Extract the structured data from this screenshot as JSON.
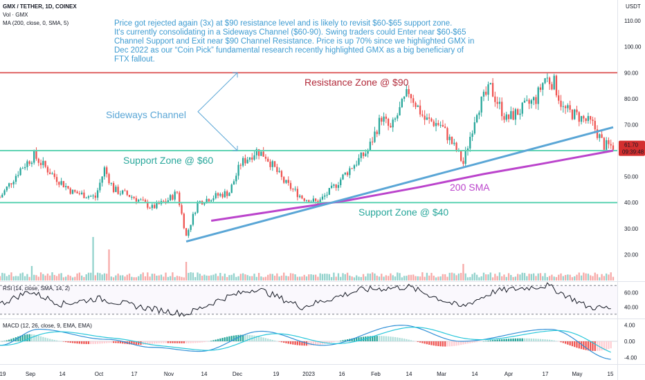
{
  "legend": {
    "pair": "GMX / TETHER, 1D, COINEX",
    "volume": "Vol · GMX",
    "ma": "MA (200, close, 0, SMA, 5)",
    "rsi": "RSI (14, close, SMA, 14, 2)",
    "macd": "MACD (12, 26, close, 9, EMA, EMA)"
  },
  "currency": "USDT",
  "note": [
    "Price got rejected again (3x) at $90 resistance level and is likely to revisit $60-$65 support zone.",
    "It's currently consolidating in a Sideways Channel ($60-90). Swing traders could Enter near $60-$65",
    "Channel Support and Exit near $90 Channel Resistance. Price is up 70% since we highlighted GMX in",
    "Dec 2022 as our “Coin Pick” fundamental research recently highlighted GMX as a big beneficiary of",
    "FTX fallout."
  ],
  "labels": {
    "resistance": "Resistance Zone @ $90",
    "sideways": "Sideways Channel",
    "support60": "Support Zone @ $60",
    "sma": "200 SMA",
    "support40": "Support Zone @ $40"
  },
  "last_price": {
    "value": "61.70",
    "countdown": "09:39:48"
  },
  "x_ticks": [
    "19",
    "Sep",
    "14",
    "Oct",
    "17",
    "Nov",
    "14",
    "Dec",
    "19",
    "2023",
    "16",
    "Feb",
    "14",
    "Mar",
    "14",
    "Apr",
    "17",
    "May",
    "15"
  ],
  "price_ticks": [
    "110.00",
    "100.00",
    "90.00",
    "80.00",
    "70.00",
    "60.00",
    "50.00",
    "40.00",
    "30.00",
    "20.00"
  ],
  "rsi_ticks": [
    "60.00",
    "40.00"
  ],
  "macd_ticks": [
    "4.00",
    "0.00",
    "-4.00"
  ],
  "colors": {
    "up": "#26a69a",
    "down": "#ef5350",
    "resistance": "#e06666",
    "support": "#5fd3b3",
    "trendline": "#5aa6d6",
    "sma": "#bb44cc",
    "note": "#3d9bd1",
    "macd": "#2f8fd6",
    "signal": "#26c6da"
  },
  "chart_data": {
    "type": "candlestick",
    "timeframe": "1D",
    "x_range": [
      "2022-08-19",
      "2023-05-16"
    ],
    "ylim": [
      10,
      118
    ],
    "zones": [
      {
        "name": "Resistance Zone @ $90",
        "price": 90
      },
      {
        "name": "Support Zone @ $60",
        "price": 60
      },
      {
        "name": "Support Zone @ $40",
        "price": 40
      }
    ],
    "trendline": {
      "from": {
        "date": "2022-11-09",
        "price": 25
      },
      "to": {
        "date": "2023-05-16",
        "price": 69
      }
    },
    "sideways_channel_arrow": {
      "top_price": 90,
      "bottom_price": 60
    },
    "sma200": [
      {
        "date": "2022-11-20",
        "price": 33
      },
      {
        "date": "2022-12-20",
        "price": 37
      },
      {
        "date": "2023-01-20",
        "price": 41
      },
      {
        "date": "2023-02-20",
        "price": 46
      },
      {
        "date": "2023-03-20",
        "price": 51
      },
      {
        "date": "2023-04-15",
        "price": 55
      },
      {
        "date": "2023-05-16",
        "price": 60
      }
    ],
    "close_path": [
      {
        "date": "2022-08-19",
        "price": 42
      },
      {
        "date": "2022-08-28",
        "price": 53
      },
      {
        "date": "2022-09-03",
        "price": 58
      },
      {
        "date": "2022-09-12",
        "price": 50
      },
      {
        "date": "2022-09-20",
        "price": 44
      },
      {
        "date": "2022-09-30",
        "price": 42
      },
      {
        "date": "2022-10-04",
        "price": 53
      },
      {
        "date": "2022-10-08",
        "price": 45
      },
      {
        "date": "2022-10-17",
        "price": 42
      },
      {
        "date": "2022-10-25",
        "price": 38
      },
      {
        "date": "2022-11-01",
        "price": 41
      },
      {
        "date": "2022-11-05",
        "price": 44
      },
      {
        "date": "2022-11-09",
        "price": 27
      },
      {
        "date": "2022-11-14",
        "price": 40
      },
      {
        "date": "2022-11-20",
        "price": 42
      },
      {
        "date": "2022-11-28",
        "price": 44
      },
      {
        "date": "2022-12-03",
        "price": 55
      },
      {
        "date": "2022-12-10",
        "price": 60
      },
      {
        "date": "2022-12-14",
        "price": 58
      },
      {
        "date": "2022-12-22",
        "price": 48
      },
      {
        "date": "2022-12-30",
        "price": 42
      },
      {
        "date": "2023-01-06",
        "price": 40
      },
      {
        "date": "2023-01-12",
        "price": 45
      },
      {
        "date": "2023-01-20",
        "price": 53
      },
      {
        "date": "2023-01-28",
        "price": 60
      },
      {
        "date": "2023-02-03",
        "price": 73
      },
      {
        "date": "2023-02-07",
        "price": 68
      },
      {
        "date": "2023-02-15",
        "price": 83
      },
      {
        "date": "2023-02-22",
        "price": 72
      },
      {
        "date": "2023-03-01",
        "price": 70
      },
      {
        "date": "2023-03-08",
        "price": 60
      },
      {
        "date": "2023-03-11",
        "price": 55
      },
      {
        "date": "2023-03-17",
        "price": 76
      },
      {
        "date": "2023-03-23",
        "price": 84
      },
      {
        "date": "2023-03-30",
        "price": 72
      },
      {
        "date": "2023-04-06",
        "price": 76
      },
      {
        "date": "2023-04-12",
        "price": 80
      },
      {
        "date": "2023-04-16",
        "price": 88
      },
      {
        "date": "2023-04-20",
        "price": 86
      },
      {
        "date": "2023-04-24",
        "price": 76
      },
      {
        "date": "2023-05-01",
        "price": 73
      },
      {
        "date": "2023-05-07",
        "price": 70
      },
      {
        "date": "2023-05-12",
        "price": 62
      },
      {
        "date": "2023-05-16",
        "price": 61.7
      }
    ],
    "volume_spikes": [
      {
        "date": "2022-09-02",
        "volume": 0.7
      },
      {
        "date": "2022-09-29",
        "volume": 2.1
      },
      {
        "date": "2022-10-06",
        "volume": 1.5
      },
      {
        "date": "2022-11-09",
        "volume": 0.9
      },
      {
        "date": "2023-03-11",
        "volume": 0.8
      }
    ],
    "rsi_levels": [
      70,
      30
    ],
    "rsi_ylim": [
      25,
      75
    ],
    "rsi_path": [
      {
        "date": "2022-08-19",
        "value": 44
      },
      {
        "date": "2022-09-01",
        "value": 62
      },
      {
        "date": "2022-09-15",
        "value": 44
      },
      {
        "date": "2022-10-01",
        "value": 52
      },
      {
        "date": "2022-10-20",
        "value": 40
      },
      {
        "date": "2022-11-09",
        "value": 30
      },
      {
        "date": "2022-11-25",
        "value": 52
      },
      {
        "date": "2022-12-10",
        "value": 66
      },
      {
        "date": "2022-12-30",
        "value": 40
      },
      {
        "date": "2023-01-25",
        "value": 64
      },
      {
        "date": "2023-02-15",
        "value": 68
      },
      {
        "date": "2023-03-10",
        "value": 40
      },
      {
        "date": "2023-03-25",
        "value": 62
      },
      {
        "date": "2023-04-17",
        "value": 70
      },
      {
        "date": "2023-05-05",
        "value": 40
      },
      {
        "date": "2023-05-16",
        "value": 38
      }
    ],
    "macd_ylim": [
      -5.5,
      5.5
    ],
    "macd_path": [
      {
        "date": "2022-08-19",
        "value": -1
      },
      {
        "date": "2022-09-05",
        "value": 3
      },
      {
        "date": "2022-10-05",
        "value": 0.5
      },
      {
        "date": "2022-10-25",
        "value": -1.5
      },
      {
        "date": "2022-11-15",
        "value": -2.5
      },
      {
        "date": "2022-12-12",
        "value": 2.5
      },
      {
        "date": "2023-01-08",
        "value": -1
      },
      {
        "date": "2023-02-12",
        "value": 4
      },
      {
        "date": "2023-03-10",
        "value": 0
      },
      {
        "date": "2023-04-18",
        "value": 3
      },
      {
        "date": "2023-05-16",
        "value": -4.5
      }
    ]
  }
}
